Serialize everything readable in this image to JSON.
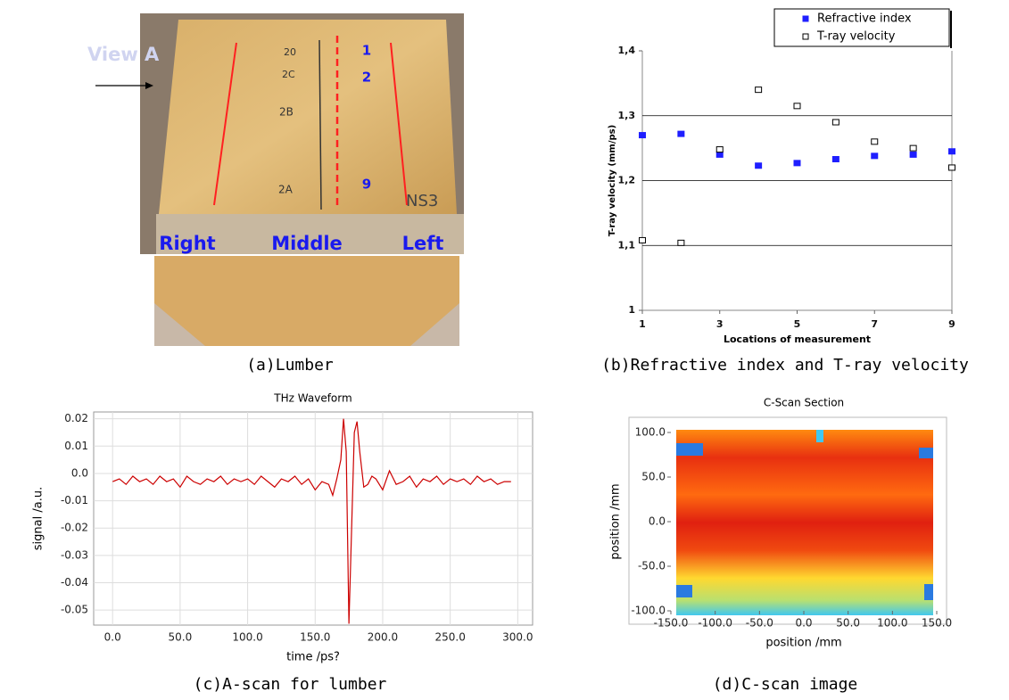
{
  "panel_a": {
    "caption": "(a)Lumber",
    "view": "View A",
    "right": "Right",
    "middle": "Middle",
    "left": "Left",
    "points": [
      "1",
      "2",
      "9"
    ],
    "marks": [
      "20",
      "2C",
      "2B",
      "2A"
    ],
    "id": "NS3"
  },
  "chart_data": [
    {
      "type": "scatter",
      "caption": "(b)Refractive index and T-ray velocity",
      "xlabel": "Locations of measurement",
      "ylabel": "T-ray velocity (mm/ps)",
      "x": [
        1,
        2,
        3,
        4,
        5,
        6,
        7,
        8,
        9
      ],
      "xlim": [
        1,
        9
      ],
      "xticks": [
        1,
        3,
        5,
        7,
        9
      ],
      "ylim": [
        1,
        1.4
      ],
      "yticks": [
        1,
        {
          "value": 1.1,
          "label": "1,1"
        },
        {
          "value": 1.2,
          "label": "1,2"
        },
        {
          "value": 1.3,
          "label": "1,3"
        },
        {
          "value": 1.4,
          "label": "1,4"
        }
      ],
      "grid": true,
      "legend": "top-right",
      "series": [
        {
          "name": "Refractive index",
          "color": "#1f1fff",
          "marker": "filled",
          "values": [
            1.27,
            1.272,
            1.24,
            1.223,
            1.227,
            1.233,
            1.238,
            1.24,
            1.245
          ]
        },
        {
          "name": "T-ray velocity",
          "color": "#000000",
          "marker": "hollow",
          "values": [
            1.108,
            1.104,
            1.248,
            1.34,
            1.315,
            1.29,
            1.26,
            1.25,
            1.22
          ]
        }
      ]
    },
    {
      "type": "line",
      "title": "THz Waveform",
      "caption": "(c)A-scan for lumber",
      "xlabel": "time /ps?",
      "ylabel": "signal /a.u.",
      "color": "#cc0000",
      "grid": true,
      "xlim": [
        -14,
        311
      ],
      "xticks": [
        {
          "value": 0,
          "label": "0.0"
        },
        {
          "value": 50,
          "label": "50.0"
        },
        {
          "value": 100,
          "label": "100.0"
        },
        {
          "value": 150,
          "label": "150.0"
        },
        {
          "value": 200,
          "label": "200.0"
        },
        {
          "value": 250,
          "label": "250.0"
        },
        {
          "value": 300,
          "label": "300.0"
        }
      ],
      "ylim": [
        -0.0555,
        0.0225
      ],
      "yticks": [
        0.02,
        0.01,
        {
          "value": 0,
          "label": "0.0"
        },
        -0.01,
        -0.02,
        -0.03,
        -0.04,
        -0.05
      ],
      "x": [
        0,
        5,
        10,
        15,
        20,
        25,
        30,
        35,
        40,
        45,
        50,
        55,
        60,
        65,
        70,
        75,
        80,
        85,
        90,
        95,
        100,
        105,
        110,
        115,
        120,
        125,
        130,
        135,
        140,
        145,
        150,
        155,
        160,
        163,
        166,
        169,
        171,
        173,
        175,
        177,
        179,
        181,
        183,
        186,
        189,
        192,
        195,
        200,
        205,
        210,
        215,
        220,
        225,
        230,
        235,
        240,
        245,
        250,
        255,
        260,
        265,
        270,
        275,
        280,
        285,
        290,
        295
      ],
      "values": [
        -0.003,
        -0.002,
        -0.004,
        -0.001,
        -0.003,
        -0.002,
        -0.004,
        -0.001,
        -0.003,
        -0.002,
        -0.005,
        -0.001,
        -0.003,
        -0.004,
        -0.002,
        -0.003,
        -0.001,
        -0.004,
        -0.002,
        -0.003,
        -0.002,
        -0.004,
        -0.001,
        -0.003,
        -0.005,
        -0.002,
        -0.003,
        -0.001,
        -0.004,
        -0.002,
        -0.006,
        -0.003,
        -0.004,
        -0.008,
        -0.002,
        0.005,
        0.02,
        0.008,
        -0.055,
        -0.02,
        0.015,
        0.019,
        0.008,
        -0.005,
        -0.004,
        -0.001,
        -0.002,
        -0.006,
        0.001,
        -0.004,
        -0.003,
        -0.001,
        -0.005,
        -0.002,
        -0.003,
        -0.001,
        -0.004,
        -0.002,
        -0.003,
        -0.002,
        -0.004,
        -0.001,
        -0.003,
        -0.002,
        -0.004,
        -0.003,
        -0.003
      ]
    },
    {
      "type": "image",
      "title": "C-Scan Section",
      "caption": "(d)C-scan image",
      "xlabel": "position /mm",
      "ylabel": "position /mm",
      "xlim": [
        -150,
        150
      ],
      "xticks": [
        {
          "value": -150,
          "label": "-150.0"
        },
        {
          "value": -100,
          "label": "-100.0"
        },
        {
          "value": -50,
          "label": "-50.0"
        },
        {
          "value": 0,
          "label": "0.0"
        },
        {
          "value": 50,
          "label": "50.0"
        },
        {
          "value": 100,
          "label": "100.0"
        },
        {
          "value": 150,
          "label": "150.0"
        }
      ],
      "ylim": [
        -100,
        100
      ],
      "yticks": [
        {
          "value": 100,
          "label": "100.0"
        },
        {
          "value": 50,
          "label": "50.0"
        },
        {
          "value": 0,
          "label": "0.0"
        },
        {
          "value": -50,
          "label": "-50.0"
        },
        {
          "value": -100,
          "label": "-100.0"
        }
      ]
    }
  ]
}
